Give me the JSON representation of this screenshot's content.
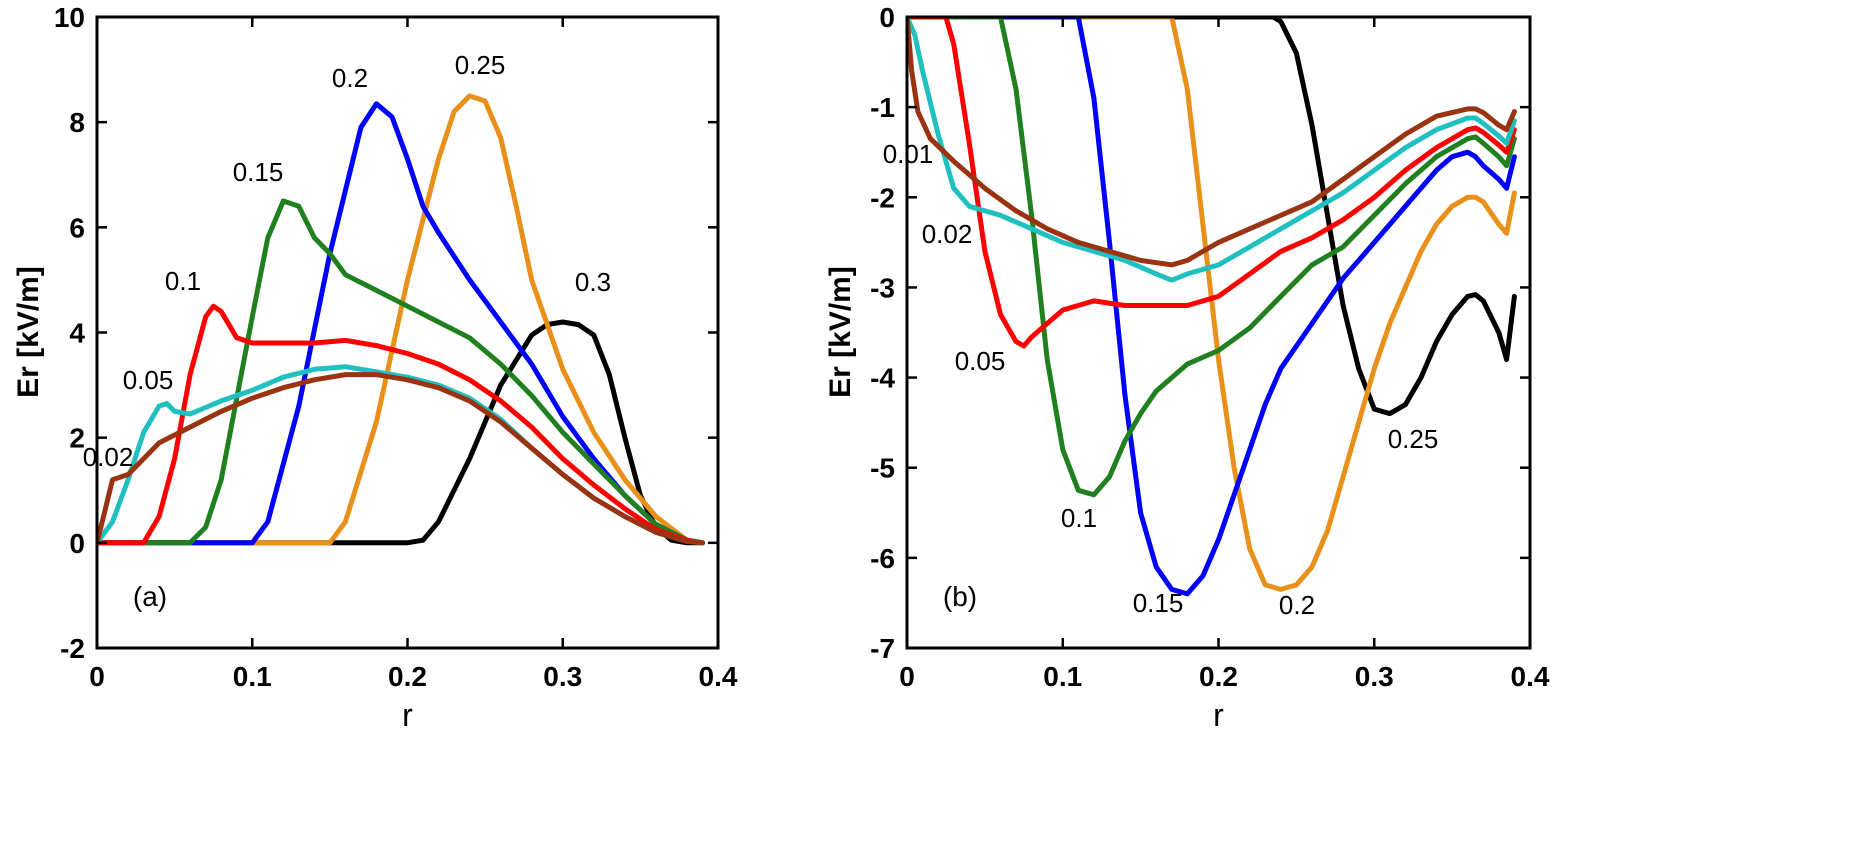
{
  "chart_data": [
    {
      "type": "line",
      "panel_label": "(a)",
      "xlabel": "r",
      "ylabel": "Er [kV/m]",
      "xlim": [
        0,
        0.4
      ],
      "ylim": [
        -2,
        10
      ],
      "xticks": [
        "0",
        "0.1",
        "0.2",
        "0.3",
        "0.4"
      ],
      "yticks": [
        "-2",
        "0",
        "2",
        "4",
        "6",
        "8",
        "10"
      ],
      "grid": false,
      "series": [
        {
          "name": "0.3",
          "color": "#000000",
          "x": [
            0,
            0.2,
            0.21,
            0.22,
            0.24,
            0.26,
            0.28,
            0.29,
            0.3,
            0.31,
            0.32,
            0.33,
            0.34,
            0.35,
            0.36,
            0.37,
            0.38,
            0.39
          ],
          "y": [
            0,
            0,
            0.05,
            0.4,
            1.6,
            3.0,
            3.95,
            4.15,
            4.2,
            4.15,
            3.95,
            3.2,
            2.0,
            0.9,
            0.3,
            0.05,
            0,
            0
          ]
        },
        {
          "name": "0.25",
          "color": "#e8901a",
          "x": [
            0,
            0.15,
            0.16,
            0.18,
            0.2,
            0.22,
            0.23,
            0.24,
            0.25,
            0.26,
            0.27,
            0.28,
            0.3,
            0.32,
            0.34,
            0.36,
            0.38,
            0.39
          ],
          "y": [
            0,
            0,
            0.4,
            2.3,
            5.0,
            7.3,
            8.2,
            8.5,
            8.4,
            7.7,
            6.4,
            5.0,
            3.3,
            2.1,
            1.2,
            0.5,
            0.05,
            0
          ]
        },
        {
          "name": "0.2",
          "color": "#0000ff",
          "x": [
            0,
            0.1,
            0.11,
            0.13,
            0.15,
            0.17,
            0.18,
            0.19,
            0.2,
            0.21,
            0.22,
            0.24,
            0.26,
            0.28,
            0.3,
            0.32,
            0.34,
            0.36,
            0.38,
            0.39
          ],
          "y": [
            0,
            0,
            0.4,
            2.6,
            5.5,
            7.9,
            8.35,
            8.1,
            7.3,
            6.4,
            5.9,
            5.0,
            4.2,
            3.4,
            2.4,
            1.6,
            0.9,
            0.35,
            0.05,
            0
          ]
        },
        {
          "name": "0.15",
          "color": "#208020",
          "x": [
            0,
            0.06,
            0.07,
            0.08,
            0.1,
            0.11,
            0.12,
            0.13,
            0.14,
            0.15,
            0.16,
            0.18,
            0.2,
            0.22,
            0.24,
            0.26,
            0.28,
            0.3,
            0.32,
            0.34,
            0.36,
            0.38,
            0.39
          ],
          "y": [
            0,
            0,
            0.3,
            1.2,
            4.3,
            5.8,
            6.5,
            6.4,
            5.8,
            5.5,
            5.1,
            4.8,
            4.5,
            4.2,
            3.9,
            3.4,
            2.8,
            2.1,
            1.5,
            0.9,
            0.35,
            0.05,
            0
          ]
        },
        {
          "name": "0.1",
          "color": "#ff0000",
          "x": [
            0,
            0.03,
            0.04,
            0.05,
            0.06,
            0.07,
            0.075,
            0.08,
            0.09,
            0.1,
            0.12,
            0.14,
            0.16,
            0.18,
            0.2,
            0.22,
            0.24,
            0.26,
            0.28,
            0.3,
            0.32,
            0.34,
            0.36,
            0.38,
            0.39
          ],
          "y": [
            0,
            0,
            0.5,
            1.6,
            3.2,
            4.3,
            4.5,
            4.4,
            3.9,
            3.8,
            3.8,
            3.8,
            3.85,
            3.75,
            3.6,
            3.4,
            3.1,
            2.7,
            2.2,
            1.6,
            1.1,
            0.65,
            0.25,
            0.05,
            0
          ]
        },
        {
          "name": "0.05",
          "color": "#20c0c0",
          "x": [
            0,
            0.01,
            0.02,
            0.03,
            0.04,
            0.045,
            0.05,
            0.06,
            0.08,
            0.1,
            0.12,
            0.14,
            0.16,
            0.18,
            0.2,
            0.22,
            0.24,
            0.26,
            0.28,
            0.3,
            0.32,
            0.34,
            0.36,
            0.38,
            0.39
          ],
          "y": [
            0,
            0.4,
            1.2,
            2.1,
            2.6,
            2.65,
            2.5,
            2.45,
            2.7,
            2.9,
            3.15,
            3.3,
            3.35,
            3.25,
            3.15,
            3.0,
            2.75,
            2.35,
            1.8,
            1.3,
            0.85,
            0.5,
            0.2,
            0.03,
            0
          ]
        },
        {
          "name": "0.02",
          "color": "#993311",
          "x": [
            0,
            0.005,
            0.01,
            0.02,
            0.03,
            0.04,
            0.06,
            0.08,
            0.1,
            0.12,
            0.14,
            0.16,
            0.18,
            0.2,
            0.22,
            0.24,
            0.26,
            0.28,
            0.3,
            0.32,
            0.34,
            0.36,
            0.38,
            0.39
          ],
          "y": [
            0,
            0.6,
            1.2,
            1.3,
            1.6,
            1.9,
            2.2,
            2.5,
            2.75,
            2.95,
            3.1,
            3.2,
            3.2,
            3.1,
            2.95,
            2.7,
            2.3,
            1.8,
            1.3,
            0.85,
            0.5,
            0.2,
            0.03,
            0
          ]
        }
      ],
      "annotations": [
        "0.02",
        "0.05",
        "0.1",
        "0.15",
        "0.2",
        "0.25",
        "0.3"
      ]
    },
    {
      "type": "line",
      "panel_label": "(b)",
      "xlabel": "r",
      "ylabel": "Er [kV/m]",
      "xlim": [
        0,
        0.4
      ],
      "ylim": [
        -7,
        0
      ],
      "xticks": [
        "0",
        "0.1",
        "0.2",
        "0.3",
        "0.4"
      ],
      "yticks": [
        "-7",
        "-6",
        "-5",
        "-4",
        "-3",
        "-2",
        "-1",
        "0"
      ],
      "grid": false,
      "series": [
        {
          "name": "0.25",
          "color": "#000000",
          "x": [
            0,
            0.235,
            0.24,
            0.25,
            0.26,
            0.27,
            0.28,
            0.29,
            0.3,
            0.31,
            0.32,
            0.33,
            0.34,
            0.35,
            0.36,
            0.365,
            0.37,
            0.38,
            0.385,
            0.39
          ],
          "y": [
            0,
            0,
            -0.05,
            -0.4,
            -1.2,
            -2.2,
            -3.2,
            -3.9,
            -4.35,
            -4.4,
            -4.3,
            -4.0,
            -3.6,
            -3.3,
            -3.1,
            -3.08,
            -3.15,
            -3.5,
            -3.8,
            -3.1
          ]
        },
        {
          "name": "0.2",
          "color": "#e8901a",
          "x": [
            0,
            0.17,
            0.18,
            0.19,
            0.2,
            0.21,
            0.22,
            0.23,
            0.24,
            0.25,
            0.26,
            0.27,
            0.28,
            0.29,
            0.3,
            0.31,
            0.32,
            0.33,
            0.34,
            0.35,
            0.36,
            0.365,
            0.37,
            0.38,
            0.385,
            0.39
          ],
          "y": [
            0,
            0,
            -0.8,
            -2.3,
            -3.8,
            -5.0,
            -5.9,
            -6.3,
            -6.35,
            -6.3,
            -6.1,
            -5.7,
            -5.1,
            -4.5,
            -3.9,
            -3.4,
            -3.0,
            -2.6,
            -2.3,
            -2.1,
            -2.0,
            -2.0,
            -2.05,
            -2.3,
            -2.4,
            -1.95
          ]
        },
        {
          "name": "0.15",
          "color": "#0000ff",
          "x": [
            0,
            0.11,
            0.12,
            0.13,
            0.14,
            0.15,
            0.16,
            0.17,
            0.18,
            0.19,
            0.2,
            0.21,
            0.22,
            0.23,
            0.24,
            0.26,
            0.28,
            0.3,
            0.32,
            0.34,
            0.35,
            0.36,
            0.365,
            0.37,
            0.38,
            0.385,
            0.39
          ],
          "y": [
            0,
            0,
            -0.9,
            -2.5,
            -4.2,
            -5.5,
            -6.1,
            -6.35,
            -6.4,
            -6.2,
            -5.8,
            -5.3,
            -4.8,
            -4.3,
            -3.9,
            -3.4,
            -2.9,
            -2.5,
            -2.1,
            -1.7,
            -1.55,
            -1.5,
            -1.55,
            -1.65,
            -1.8,
            -1.9,
            -1.55
          ]
        },
        {
          "name": "0.1",
          "color": "#208020",
          "x": [
            0,
            0.06,
            0.07,
            0.08,
            0.09,
            0.1,
            0.11,
            0.12,
            0.13,
            0.14,
            0.15,
            0.16,
            0.18,
            0.2,
            0.22,
            0.24,
            0.26,
            0.28,
            0.3,
            0.32,
            0.34,
            0.36,
            0.365,
            0.37,
            0.38,
            0.385,
            0.39
          ],
          "y": [
            0,
            0,
            -0.8,
            -2.2,
            -3.8,
            -4.8,
            -5.25,
            -5.3,
            -5.1,
            -4.7,
            -4.4,
            -4.15,
            -3.85,
            -3.7,
            -3.45,
            -3.1,
            -2.75,
            -2.55,
            -2.2,
            -1.85,
            -1.55,
            -1.35,
            -1.33,
            -1.4,
            -1.55,
            -1.65,
            -1.35
          ]
        },
        {
          "name": "0.05",
          "color": "#ff0000",
          "x": [
            0,
            0.025,
            0.03,
            0.04,
            0.05,
            0.06,
            0.07,
            0.075,
            0.08,
            0.09,
            0.1,
            0.12,
            0.14,
            0.16,
            0.18,
            0.2,
            0.22,
            0.24,
            0.26,
            0.28,
            0.3,
            0.32,
            0.34,
            0.36,
            0.365,
            0.37,
            0.38,
            0.385,
            0.39
          ],
          "y": [
            0,
            0,
            -0.3,
            -1.4,
            -2.6,
            -3.3,
            -3.6,
            -3.65,
            -3.55,
            -3.4,
            -3.25,
            -3.15,
            -3.2,
            -3.2,
            -3.2,
            -3.1,
            -2.85,
            -2.6,
            -2.45,
            -2.25,
            -2.0,
            -1.7,
            -1.45,
            -1.25,
            -1.23,
            -1.28,
            -1.42,
            -1.5,
            -1.25
          ]
        },
        {
          "name": "0.02",
          "color": "#20c0c0",
          "x": [
            0,
            0.005,
            0.01,
            0.02,
            0.03,
            0.04,
            0.06,
            0.08,
            0.1,
            0.12,
            0.14,
            0.16,
            0.17,
            0.18,
            0.2,
            0.22,
            0.24,
            0.26,
            0.28,
            0.3,
            0.32,
            0.34,
            0.36,
            0.365,
            0.37,
            0.38,
            0.385,
            0.39
          ],
          "y": [
            0,
            -0.2,
            -0.6,
            -1.3,
            -1.9,
            -2.1,
            -2.2,
            -2.35,
            -2.5,
            -2.6,
            -2.7,
            -2.85,
            -2.92,
            -2.85,
            -2.75,
            -2.55,
            -2.35,
            -2.15,
            -1.95,
            -1.7,
            -1.45,
            -1.25,
            -1.12,
            -1.12,
            -1.18,
            -1.32,
            -1.4,
            -1.15
          ]
        },
        {
          "name": "0.01",
          "color": "#993311",
          "x": [
            0,
            0.003,
            0.007,
            0.015,
            0.03,
            0.05,
            0.07,
            0.09,
            0.11,
            0.13,
            0.15,
            0.17,
            0.18,
            0.2,
            0.22,
            0.24,
            0.26,
            0.28,
            0.3,
            0.32,
            0.34,
            0.36,
            0.365,
            0.37,
            0.38,
            0.385,
            0.39
          ],
          "y": [
            0,
            -0.6,
            -1.05,
            -1.35,
            -1.6,
            -1.9,
            -2.15,
            -2.35,
            -2.5,
            -2.6,
            -2.7,
            -2.75,
            -2.7,
            -2.5,
            -2.35,
            -2.2,
            -2.05,
            -1.8,
            -1.55,
            -1.3,
            -1.1,
            -1.02,
            -1.02,
            -1.06,
            -1.2,
            -1.25,
            -1.05
          ]
        }
      ],
      "annotations": [
        "0.01",
        "0.02",
        "0.05",
        "0.1",
        "0.15",
        "0.2",
        "0.25"
      ]
    }
  ]
}
